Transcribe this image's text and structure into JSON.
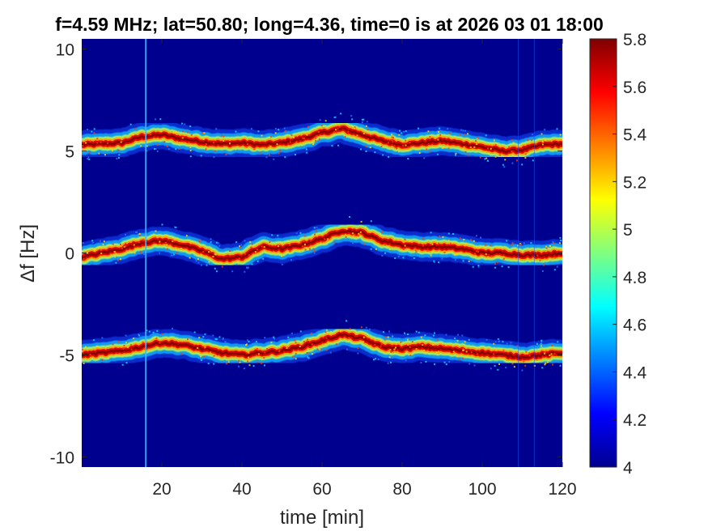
{
  "chart_data": {
    "type": "heatmap",
    "title": "f=4.59 MHz;  lat=50.80; long=4.36, time=0 is at 2026 03 01 18:00",
    "xlabel": "time [min]",
    "ylabel": "Δf [Hz]",
    "xlim": [
      0,
      120
    ],
    "ylim": [
      -10.5,
      10.5
    ],
    "x_ticks": [
      20,
      40,
      60,
      80,
      100,
      120
    ],
    "x_tick_labels": [
      "20",
      "40",
      "60",
      "80",
      "100",
      "120"
    ],
    "y_ticks": [
      10,
      5,
      0,
      -5,
      -10
    ],
    "y_tick_labels": [
      "10",
      "5",
      "0",
      "-5",
      "-10"
    ],
    "colorbar": {
      "colormap": "jet",
      "range": [
        4,
        5.8
      ],
      "ticks": [
        5.8,
        5.6,
        5.4,
        5.2,
        5,
        4.8,
        4.6,
        4.4,
        4.2,
        4
      ],
      "tick_labels": [
        "5.8",
        "5.6",
        "5.4",
        "5.2",
        "5",
        "4.8",
        "4.6",
        "4.4",
        "4.2",
        "4"
      ]
    },
    "background_level": 4.05,
    "grid": false,
    "series": [
      {
        "time": [
          0,
          5,
          10,
          15,
          20,
          25,
          30,
          35,
          40,
          45,
          50,
          55,
          60,
          65,
          70,
          75,
          80,
          85,
          90,
          95,
          100,
          105,
          110,
          115,
          120
        ],
        "df": [
          5.3,
          5.35,
          5.4,
          5.7,
          5.8,
          5.6,
          5.45,
          5.35,
          5.4,
          5.3,
          5.4,
          5.6,
          5.9,
          6.1,
          5.8,
          5.5,
          5.3,
          5.4,
          5.5,
          5.35,
          5.2,
          5.0,
          5.05,
          5.3,
          5.35
        ]
      },
      {
        "time": [
          0,
          5,
          10,
          15,
          20,
          25,
          30,
          35,
          40,
          45,
          50,
          55,
          60,
          65,
          70,
          75,
          80,
          85,
          90,
          95,
          100,
          105,
          110,
          115,
          120
        ],
        "df": [
          -0.2,
          0.0,
          0.2,
          0.5,
          0.6,
          0.4,
          0.1,
          -0.3,
          -0.2,
          0.3,
          0.2,
          0.4,
          0.7,
          1.1,
          1.0,
          0.6,
          0.4,
          0.3,
          0.3,
          0.2,
          0.0,
          0.0,
          -0.1,
          -0.1,
          0.0
        ]
      },
      {
        "time": [
          0,
          5,
          10,
          15,
          20,
          25,
          30,
          35,
          40,
          45,
          50,
          55,
          60,
          65,
          70,
          75,
          80,
          85,
          90,
          95,
          100,
          105,
          110,
          115,
          120
        ],
        "df": [
          -5.0,
          -4.9,
          -4.8,
          -4.6,
          -4.4,
          -4.5,
          -4.7,
          -4.9,
          -5.0,
          -4.9,
          -4.8,
          -4.6,
          -4.3,
          -4.0,
          -4.2,
          -4.6,
          -4.7,
          -4.6,
          -4.7,
          -4.8,
          -4.9,
          -5.0,
          -5.1,
          -5.0,
          -4.9
        ]
      }
    ],
    "vertical_artifacts_time": [
      16,
      109,
      113
    ]
  }
}
